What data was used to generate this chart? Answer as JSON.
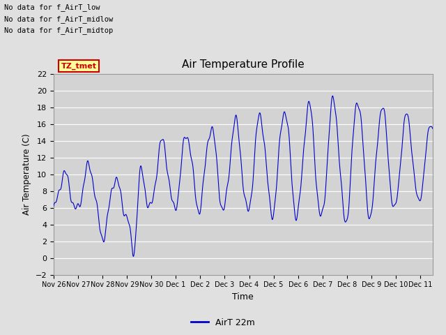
{
  "title": "Air Temperature Profile",
  "xlabel": "Time",
  "ylabel": "Air Temperature (C)",
  "legend_label": "AirT 22m",
  "ylim": [
    -2,
    22
  ],
  "yticks": [
    -2,
    0,
    2,
    4,
    6,
    8,
    10,
    12,
    14,
    16,
    18,
    20,
    22
  ],
  "xtick_labels": [
    "Nov 26",
    "Nov 27",
    "Nov 28",
    "Nov 29",
    "Nov 30",
    "Dec 1",
    "Dec 2",
    "Dec 3",
    "Dec 4",
    "Dec 5",
    "Dec 6",
    "Dec 7",
    "Dec 8",
    "Dec 9",
    "Dec 10",
    "Dec 11"
  ],
  "line_color": "#0000cc",
  "fig_bg_color": "#e0e0e0",
  "plot_bg_color": "#d3d3d3",
  "grid_color": "#ffffff",
  "annotation_texts": [
    "No data for f_AirT_low",
    "No data for f_AirT_midlow",
    "No data for f_AirT_midtop"
  ],
  "legend_box_color": "#ffff99",
  "legend_text": "TZ_tmet",
  "legend_text_color": "#cc0000",
  "legend_box_edge_color": "#cc0000"
}
